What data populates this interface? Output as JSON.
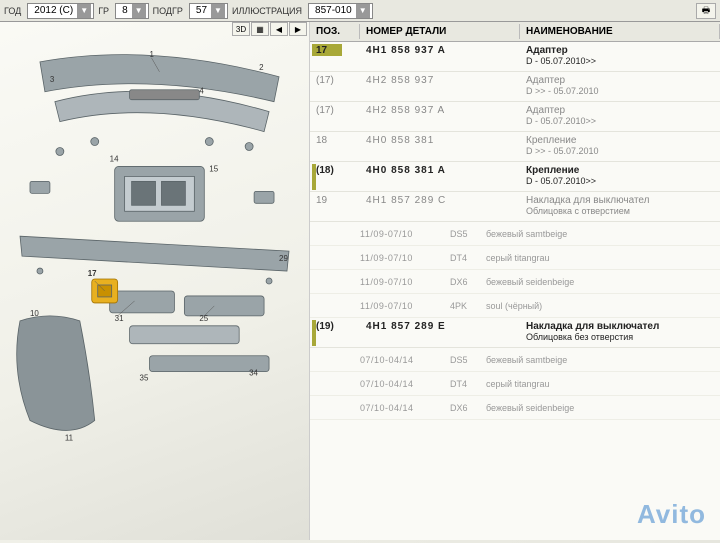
{
  "topbar": {
    "labels": {
      "year": "ГОД",
      "gr": "ГР",
      "subgr": "ПОДГР",
      "illust": "ИЛЛЮСТРАЦИЯ"
    },
    "values": {
      "year": "2012 (C)",
      "gr": "8",
      "subgr": "57",
      "illust": "857-010"
    }
  },
  "diagramToolbar": {
    "btn3d": "3D"
  },
  "columns": {
    "pos": "ПОЗ.",
    "part": "НОМЕР ДЕТАЛИ",
    "name": "НАИМЕНОВАНИЕ"
  },
  "rows": [
    {
      "pos": "17",
      "part": "4H1 858 937 A",
      "name": "Адаптер",
      "sub": "D - 05.07.2010>>",
      "active": true,
      "bar": true
    },
    {
      "pos": "(17)",
      "part": "4H2 858 937",
      "name": "Адаптер",
      "sub": "D      >> - 05.07.2010",
      "active": false
    },
    {
      "pos": "(17)",
      "part": "4H2 858 937 A",
      "name": "Адаптер",
      "sub": "D - 05.07.2010>>",
      "active": false
    },
    {
      "pos": "18",
      "part": "4H0 858 381",
      "name": "Крепление",
      "sub": "D      >> - 05.07.2010",
      "active": false
    },
    {
      "pos": "(18)",
      "part": "4H0 858 381 A",
      "name": "Крепление",
      "sub": "D - 05.07.2010>>",
      "active": true,
      "marker": true
    },
    {
      "pos": "19",
      "part": "4H1 857 289 C",
      "name": "Накладка для выключател",
      "sub": "Облицовка с отверстием",
      "active": false
    }
  ],
  "variants1": [
    {
      "c1": "11/09-07/10",
      "c2": "DS5",
      "d": "бежевый samtbeige"
    },
    {
      "c1": "11/09-07/10",
      "c2": "DT4",
      "d": "серый titangrau"
    },
    {
      "c1": "11/09-07/10",
      "c2": "DX6",
      "d": "бежевый seidenbeige"
    },
    {
      "c1": "11/09-07/10",
      "c2": "4PK",
      "d": "soul (чёрный)"
    }
  ],
  "row19b": {
    "pos": "(19)",
    "part": "4H1 857 289 E",
    "name": "Накладка для выключател",
    "sub": "Облицовка без отверстия",
    "active": true,
    "marker": true
  },
  "variants2": [
    {
      "c1": "07/10-04/14",
      "c2": "DS5",
      "d": "бежевый samtbeige"
    },
    {
      "c1": "07/10-04/14",
      "c2": "DT4",
      "d": "серый titangrau"
    },
    {
      "c1": "07/10-04/14",
      "c2": "DX6",
      "d": "бежевый seidenbeige"
    }
  ],
  "watermark": {
    "a": "Avito",
    "dot": "•"
  },
  "colors": {
    "olive": "#a8a838",
    "partFill": "#9aa4a8",
    "partStroke": "#5a6468",
    "highlight": "#e8b020"
  }
}
